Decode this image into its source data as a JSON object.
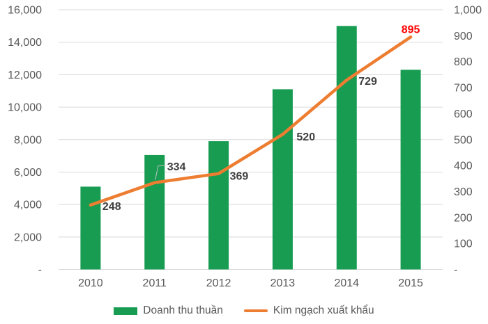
{
  "chart_data": {
    "type": "combo",
    "title": "",
    "categories": [
      "2010",
      "2011",
      "2012",
      "2013",
      "2014",
      "2015"
    ],
    "series": [
      {
        "name": "Doanh thu thuần",
        "type": "bar",
        "axis": "left",
        "color": "#179C52",
        "values": [
          5100,
          7050,
          7900,
          11100,
          15000,
          12300
        ]
      },
      {
        "name": "Kim ngạch xuất khẩu",
        "type": "line",
        "axis": "right",
        "color": "#ED7D31",
        "values": [
          248,
          334,
          369,
          520,
          729,
          895
        ],
        "data_labels": [
          {
            "text": "248",
            "color": "#404040"
          },
          {
            "text": "334",
            "color": "#404040"
          },
          {
            "text": "369",
            "color": "#404040"
          },
          {
            "text": "520",
            "color": "#404040"
          },
          {
            "text": "729",
            "color": "#404040"
          },
          {
            "text": "895",
            "color": "#FF0000"
          }
        ]
      }
    ],
    "left_axis": {
      "min": 0,
      "max": 16000,
      "step": 2000,
      "tick_labels": [
        "-",
        "2,000",
        "4,000",
        "6,000",
        "8,000",
        "10,000",
        "12,000",
        "14,000",
        "16,000"
      ]
    },
    "right_axis": {
      "min": 0,
      "max": 1000,
      "step": 100,
      "tick_labels": [
        "-",
        "100",
        "200",
        "300",
        "400",
        "500",
        "600",
        "700",
        "800",
        "900",
        "1,000"
      ]
    },
    "grid": {
      "show": true,
      "color": "#D9D9D9"
    },
    "leader_line_color": "#BFBFBF",
    "legend_position": "bottom"
  }
}
